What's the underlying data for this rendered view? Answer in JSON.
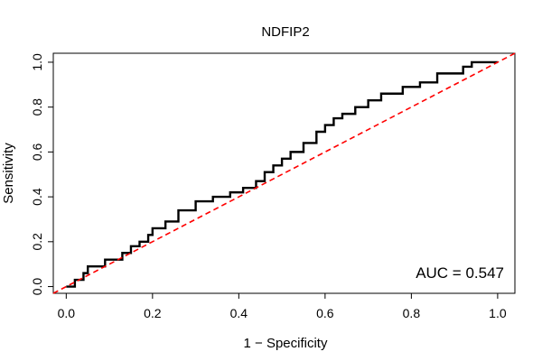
{
  "chart_data": {
    "type": "line",
    "title": "NDFIP2",
    "xlabel": "1 − Specificity",
    "ylabel": "Sensitivity",
    "xlim": [
      -0.03,
      1.04
    ],
    "ylim": [
      -0.03,
      1.04
    ],
    "xticks": [
      0.0,
      0.2,
      0.4,
      0.6,
      0.8,
      1.0
    ],
    "xtick_labels": [
      "0.0",
      "0.2",
      "0.4",
      "0.6",
      "0.8",
      "1.0"
    ],
    "yticks": [
      0.0,
      0.2,
      0.4,
      0.6,
      0.8,
      1.0
    ],
    "ytick_labels": [
      "0.0",
      "0.2",
      "0.4",
      "0.6",
      "0.8",
      "1.0"
    ],
    "grid": false,
    "annotation": "AUC = 0.547",
    "series": [
      {
        "type": "step",
        "color": "#000000",
        "x": [
          0.0,
          0.02,
          0.02,
          0.04,
          0.04,
          0.05,
          0.05,
          0.09,
          0.09,
          0.13,
          0.13,
          0.15,
          0.15,
          0.17,
          0.17,
          0.19,
          0.19,
          0.2,
          0.2,
          0.23,
          0.23,
          0.26,
          0.26,
          0.3,
          0.3,
          0.34,
          0.34,
          0.38,
          0.38,
          0.41,
          0.41,
          0.44,
          0.44,
          0.46,
          0.46,
          0.48,
          0.48,
          0.5,
          0.5,
          0.52,
          0.52,
          0.55,
          0.55,
          0.58,
          0.58,
          0.6,
          0.6,
          0.62,
          0.62,
          0.64,
          0.64,
          0.67,
          0.67,
          0.7,
          0.7,
          0.73,
          0.73,
          0.78,
          0.78,
          0.82,
          0.82,
          0.86,
          0.86,
          0.92,
          0.92,
          0.94,
          0.94,
          1.0
        ],
        "y": [
          0.0,
          0.0,
          0.03,
          0.03,
          0.06,
          0.06,
          0.09,
          0.09,
          0.12,
          0.12,
          0.15,
          0.15,
          0.18,
          0.18,
          0.2,
          0.2,
          0.23,
          0.23,
          0.26,
          0.26,
          0.29,
          0.29,
          0.34,
          0.34,
          0.38,
          0.38,
          0.4,
          0.4,
          0.42,
          0.42,
          0.44,
          0.44,
          0.47,
          0.47,
          0.51,
          0.51,
          0.54,
          0.54,
          0.57,
          0.57,
          0.6,
          0.6,
          0.64,
          0.64,
          0.69,
          0.69,
          0.72,
          0.72,
          0.75,
          0.75,
          0.77,
          0.77,
          0.8,
          0.8,
          0.83,
          0.83,
          0.86,
          0.86,
          0.89,
          0.89,
          0.91,
          0.91,
          0.95,
          0.95,
          0.98,
          0.98,
          1.0,
          1.0
        ]
      },
      {
        "type": "reference",
        "color": "#ff0000",
        "dashed": true,
        "x": [
          -0.03,
          1.04
        ],
        "y": [
          -0.03,
          1.04
        ]
      }
    ]
  }
}
